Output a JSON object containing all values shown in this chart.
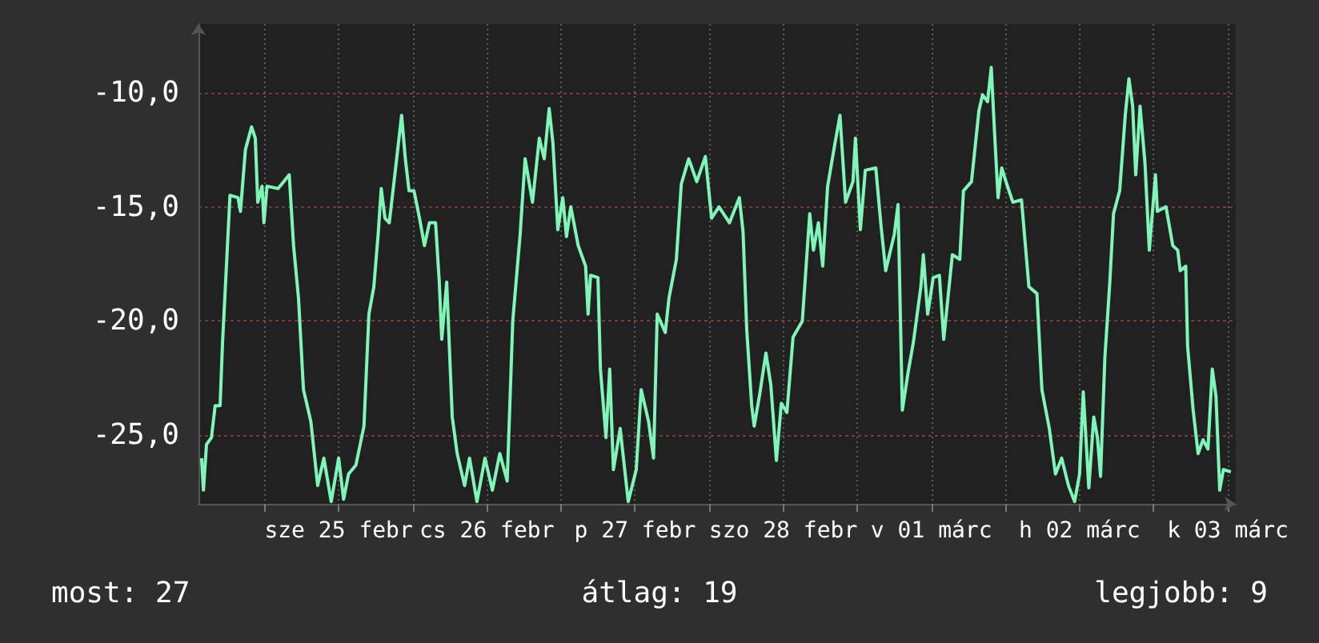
{
  "chart_data": {
    "type": "line",
    "x": [
      "--02-24T13:48",
      "--02-24T14:06",
      "--02-24T14:36",
      "--02-24T15:24",
      "--02-24T16:00",
      "--02-24T16:48",
      "--02-24T17:12",
      "--02-24T17:36",
      "--02-24T18:24",
      "--02-24T19:42",
      "--02-24T20:06",
      "--02-24T20:54",
      "--02-24T21:54",
      "--02-24T22:30",
      "--02-24T22:54",
      "--02-24T23:36",
      "--02-24T23:54",
      "--02-25T00:24",
      "--02-25T02:12",
      "--02-25T04:00",
      "--02-25T04:42",
      "--02-25T05:30",
      "--02-25T06:18",
      "--02-25T07:30",
      "--02-25T08:36",
      "--02-25T09:36",
      "--02-25T10:48",
      "--02-25T12:00",
      "--02-25T12:48",
      "--02-25T13:36",
      "--02-25T14:48",
      "--02-25T16:06",
      "--02-25T16:54",
      "--02-25T17:42",
      "--02-25T18:24",
      "--02-25T18:54",
      "--02-25T19:30",
      "--02-25T20:12",
      "--02-25T21:06",
      "--02-25T22:12",
      "--02-25T22:48",
      "--02-25T23:24",
      "--02-26T00:12",
      "--02-26T01:06",
      "--02-26T01:54",
      "--02-26T02:42",
      "--02-26T03:42",
      "--02-26T04:18",
      "--02-26T04:42",
      "--02-26T05:30",
      "--02-26T06:24",
      "--02-26T07:12",
      "--02-26T08:24",
      "--02-26T09:12",
      "--02-26T10:24",
      "--02-26T11:42",
      "--02-26T12:54",
      "--02-26T14:06",
      "--02-26T15:18",
      "--02-26T16:12",
      "--02-26T17:24",
      "--02-26T18:12",
      "--02-26T19:24",
      "--02-26T20:30",
      "--02-26T21:18",
      "--02-26T22:06",
      "--02-26T22:42",
      "--02-26T23:30",
      "--02-27T00:18",
      "--02-27T00:54",
      "--02-27T01:36",
      "--02-27T02:48",
      "--02-27T04:00",
      "--02-27T04:24",
      "--02-27T04:48",
      "--02-27T06:00",
      "--02-27T06:24",
      "--02-27T07:18",
      "--02-27T07:54",
      "--02-27T08:30",
      "--02-27T09:36",
      "--02-27T10:54",
      "--02-27T12:12",
      "--02-27T13:00",
      "--02-27T14:12",
      "--02-27T15:00",
      "--02-27T15:36",
      "--02-27T16:54",
      "--02-27T17:30",
      "--02-27T18:42",
      "--02-27T19:30",
      "--02-27T20:42",
      "--02-27T22:00",
      "--02-27T23:24",
      "--02-28T00:24",
      "--02-28T01:36",
      "--02-28T03:18",
      "--02-28T04:54",
      "--02-28T05:30",
      "--02-28T06:06",
      "--02-28T06:54",
      "--02-28T07:18",
      "--02-28T08:12",
      "--02-28T09:12",
      "--02-28T10:00",
      "--02-28T10:54",
      "--02-28T11:42",
      "--02-28T12:36",
      "--02-28T13:36",
      "--02-28T15:06",
      "--02-28T16:18",
      "--02-28T16:54",
      "--02-28T17:42",
      "--02-28T18:24",
      "--02-28T19:12",
      "--02-28T20:24",
      "--02-28T21:12",
      "--02-28T22:06",
      "--02-28T23:18",
      "--02-28T23:42",
      "--03-01T00:30",
      "--03-01T01:18",
      "--03-01T03:00",
      "--03-01T03:48",
      "--03-01T04:36",
      "--03-01T06:00",
      "--03-01T06:36",
      "--03-01T07:18",
      "--03-01T08:12",
      "--03-01T09:06",
      "--03-01T10:18",
      "--03-01T10:42",
      "--03-01T11:24",
      "--03-01T12:18",
      "--03-01T13:18",
      "--03-01T14:00",
      "--03-01T15:24",
      "--03-01T16:36",
      "--03-01T17:12",
      "--03-01T18:30",
      "--03-01T19:42",
      "--03-01T20:18",
      "--03-01T21:06",
      "--03-01T21:42",
      "--03-01T22:18",
      "--03-01T22:48",
      "--03-01T23:24",
      "--03-02T00:12",
      "--03-02T01:12",
      "--03-02T02:36",
      "--03-02T03:48",
      "--03-02T05:06",
      "--03-02T05:54",
      "--03-02T07:06",
      "--03-02T08:06",
      "--03-02T09:06",
      "--03-02T10:12",
      "--03-02T11:12",
      "--03-02T12:00",
      "--03-02T12:36",
      "--03-02T13:30",
      "--03-02T14:18",
      "--03-02T14:54",
      "--03-02T15:24",
      "--03-02T16:06",
      "--03-02T16:54",
      "--03-02T17:30",
      "--03-02T18:30",
      "--03-02T19:24",
      "--03-02T20:00",
      "--03-02T20:36",
      "--03-02T21:06",
      "--03-02T21:48",
      "--03-02T22:36",
      "--03-02T23:18",
      "--03-03T00:18",
      "--03-03T00:36",
      "--03-03T02:00",
      "--03-03T03:06",
      "--03-03T03:54",
      "--03-03T04:18",
      "--03-03T05:12",
      "--03-03T05:30",
      "--03-03T06:24",
      "--03-03T07:12",
      "--03-03T08:00",
      "--03-03T08:48",
      "--03-03T09:30",
      "--03-03T10:06",
      "--03-03T10:42",
      "--03-03T11:18",
      "--03-03T12:30"
    ],
    "series": [
      {
        "color": "#80f5b8",
        "values": [
          -26.0,
          -27.4,
          -25.4,
          -25.1,
          -23.7,
          -23.7,
          -20.9,
          -18.8,
          -14.5,
          -14.6,
          -15.2,
          -12.5,
          -11.5,
          -12.0,
          -14.8,
          -14.1,
          -15.7,
          -14.1,
          -14.2,
          -13.6,
          -16.7,
          -19.0,
          -23.0,
          -24.4,
          -27.2,
          -26.0,
          -27.9,
          -26.0,
          -27.8,
          -26.7,
          -26.3,
          -24.6,
          -19.7,
          -18.5,
          -16.2,
          -14.2,
          -15.5,
          -15.7,
          -13.6,
          -11.0,
          -12.9,
          -14.3,
          -14.3,
          -15.5,
          -16.7,
          -15.7,
          -15.7,
          -18.3,
          -20.8,
          -18.3,
          -24.2,
          -25.8,
          -27.2,
          -26.0,
          -27.9,
          -26.0,
          -27.4,
          -25.8,
          -27.0,
          -20.0,
          -16.2,
          -12.9,
          -14.8,
          -12.0,
          -12.9,
          -10.7,
          -12.2,
          -16.0,
          -14.6,
          -16.3,
          -15.0,
          -16.7,
          -17.6,
          -19.7,
          -18.0,
          -18.1,
          -22.1,
          -25.1,
          -22.1,
          -26.5,
          -24.7,
          -27.9,
          -26.5,
          -23.0,
          -24.4,
          -26.0,
          -19.7,
          -20.5,
          -19.0,
          -17.3,
          -14.0,
          -12.9,
          -13.9,
          -12.8,
          -15.5,
          -15.0,
          -15.7,
          -14.6,
          -16.1,
          -20.4,
          -23.7,
          -24.6,
          -23.2,
          -21.4,
          -22.8,
          -26.1,
          -23.6,
          -24.0,
          -20.7,
          -20.0,
          -15.3,
          -16.9,
          -15.7,
          -17.6,
          -14.1,
          -12.2,
          -11.0,
          -14.8,
          -13.9,
          -12.0,
          -16.0,
          -13.4,
          -13.3,
          -15.7,
          -17.8,
          -16.2,
          -14.9,
          -23.9,
          -22.3,
          -20.9,
          -18.5,
          -17.1,
          -19.7,
          -18.1,
          -18.0,
          -20.8,
          -17.1,
          -17.3,
          -14.3,
          -13.9,
          -10.8,
          -10.1,
          -10.4,
          -8.9,
          -12.1,
          -14.6,
          -13.3,
          -14.0,
          -14.8,
          -14.7,
          -18.5,
          -18.8,
          -23.0,
          -24.7,
          -26.7,
          -26.0,
          -27.2,
          -27.9,
          -26.7,
          -23.1,
          -27.3,
          -24.2,
          -25.1,
          -26.8,
          -21.6,
          -18.3,
          -15.3,
          -14.3,
          -11.0,
          -9.4,
          -10.6,
          -13.6,
          -10.6,
          -13.1,
          -16.9,
          -13.6,
          -15.2,
          -15.0,
          -16.7,
          -16.9,
          -17.8,
          -17.6,
          -21.1,
          -23.9,
          -25.8,
          -25.2,
          -25.6,
          -22.1,
          -23.3,
          -27.4,
          -26.5,
          -26.6
        ]
      }
    ],
    "xlim": [
      "--02-24T13:18",
      "--03-03T13:18"
    ],
    "xticks": [
      {
        "value": "--02-25T00:00",
        "label": null
      },
      {
        "value": "--02-25T12:00",
        "label": "sze 25 febr"
      },
      {
        "value": "--02-26T00:00",
        "label": null
      },
      {
        "value": "--02-26T12:00",
        "label": "cs 26 febr"
      },
      {
        "value": "--02-27T00:00",
        "label": null
      },
      {
        "value": "--02-27T12:00",
        "label": "p 27 febr"
      },
      {
        "value": "--02-28T00:00",
        "label": null
      },
      {
        "value": "--02-28T12:00",
        "label": "szo 28 febr"
      },
      {
        "value": "--03-01T00:00",
        "label": null
      },
      {
        "value": "--03-01T12:00",
        "label": "v 01 márc"
      },
      {
        "value": "--03-02T00:00",
        "label": null
      },
      {
        "value": "--03-02T12:00",
        "label": "h 02 márc"
      },
      {
        "value": "--03-03T00:00",
        "label": null
      },
      {
        "value": "--03-03T12:00",
        "label": "k 03 márc"
      }
    ],
    "ylim": [
      -28,
      -7
    ],
    "yticks": [
      {
        "value": -25,
        "label": "-25,0"
      },
      {
        "value": -20,
        "label": "-20,0"
      },
      {
        "value": -15,
        "label": "-15,0"
      },
      {
        "value": -10,
        "label": "-10,0"
      }
    ],
    "grid": true,
    "annotations": [
      "most: 27",
      "átlag: 19",
      "legjobb: 9"
    ]
  }
}
